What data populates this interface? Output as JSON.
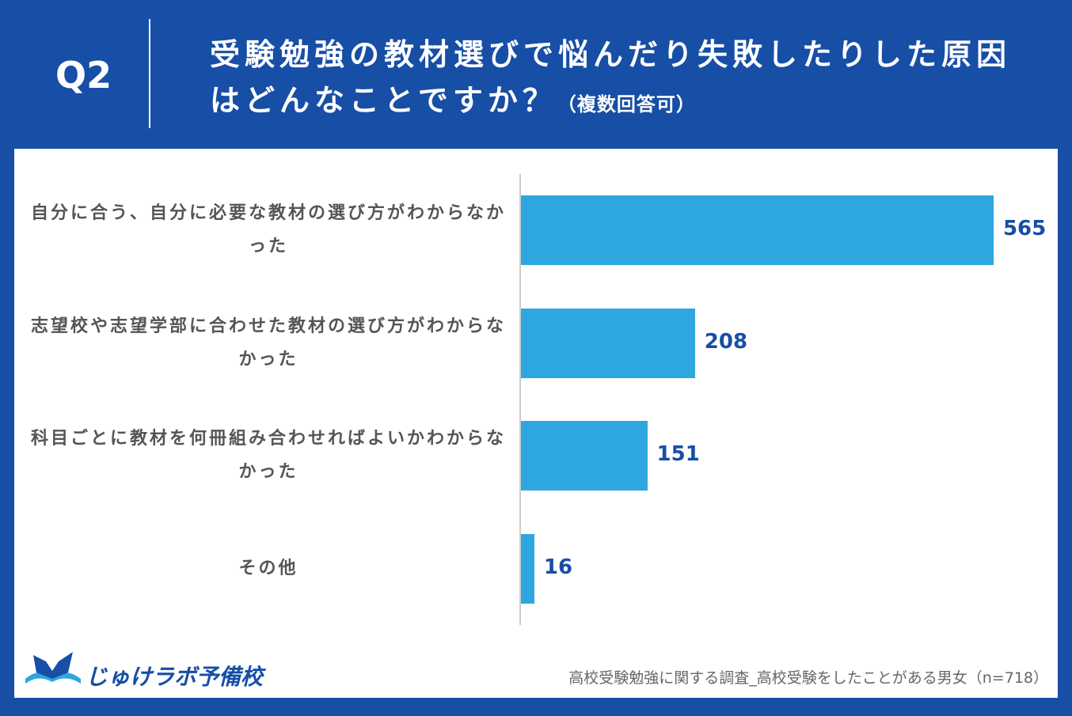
{
  "header": {
    "label": "Q2"
  },
  "chart_data": {
    "type": "bar",
    "orientation": "horizontal",
    "title": "受験勉強の教材選びで悩んだり失敗したりした原因はどんなことですか？",
    "subtitle": "（複数回答可）",
    "categories": [
      "自分に合う、自分に必要な教材の選び方がわからなかった",
      "志望校や志望学部に合わせた教材の選び方がわからなかった",
      "科目ごとに教材を何冊組み合わせればよいかわからなかった",
      "その他"
    ],
    "values": [
      565,
      208,
      151,
      16
    ],
    "color": "#2ea7e0",
    "source": "高校受験勉強に関する調査_高校受験をしたことがある男女（n=718）"
  },
  "footer": {
    "logo": "じゅけラボ予備校"
  }
}
